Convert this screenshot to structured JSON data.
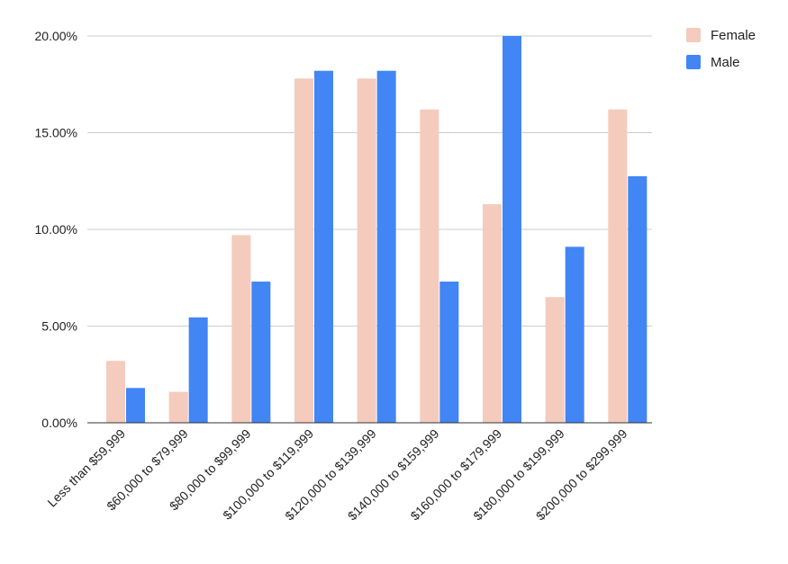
{
  "chart_data": {
    "type": "bar",
    "categories": [
      "Less than $59,999",
      "$60,000 to $79,999",
      "$80,000 to $99,999",
      "$100,000 to $119,999",
      "$120,000 to $139,999",
      "$140,000 to $159,999",
      "$160,000 to $179,999",
      "$180,000 to $199,999",
      "$200,000 to $299,999"
    ],
    "series": [
      {
        "name": "Female",
        "color": "#f4cbbd",
        "values": [
          3.2,
          1.6,
          9.7,
          17.8,
          17.8,
          16.2,
          11.3,
          6.5,
          16.2
        ]
      },
      {
        "name": "Male",
        "color": "#4285f4",
        "values": [
          1.8,
          5.45,
          7.3,
          18.2,
          18.2,
          7.3,
          20.0,
          9.1,
          12.75
        ]
      }
    ],
    "yticks": [
      {
        "value": 0,
        "label": "0.00%"
      },
      {
        "value": 5,
        "label": "5.00%"
      },
      {
        "value": 10,
        "label": "10.00%"
      },
      {
        "value": 15,
        "label": "15.00%"
      },
      {
        "value": 20,
        "label": "20.00%"
      }
    ],
    "ylim": [
      0,
      20
    ],
    "title": "",
    "xlabel": "",
    "ylabel": "",
    "grid": true,
    "legend_position": "right"
  }
}
